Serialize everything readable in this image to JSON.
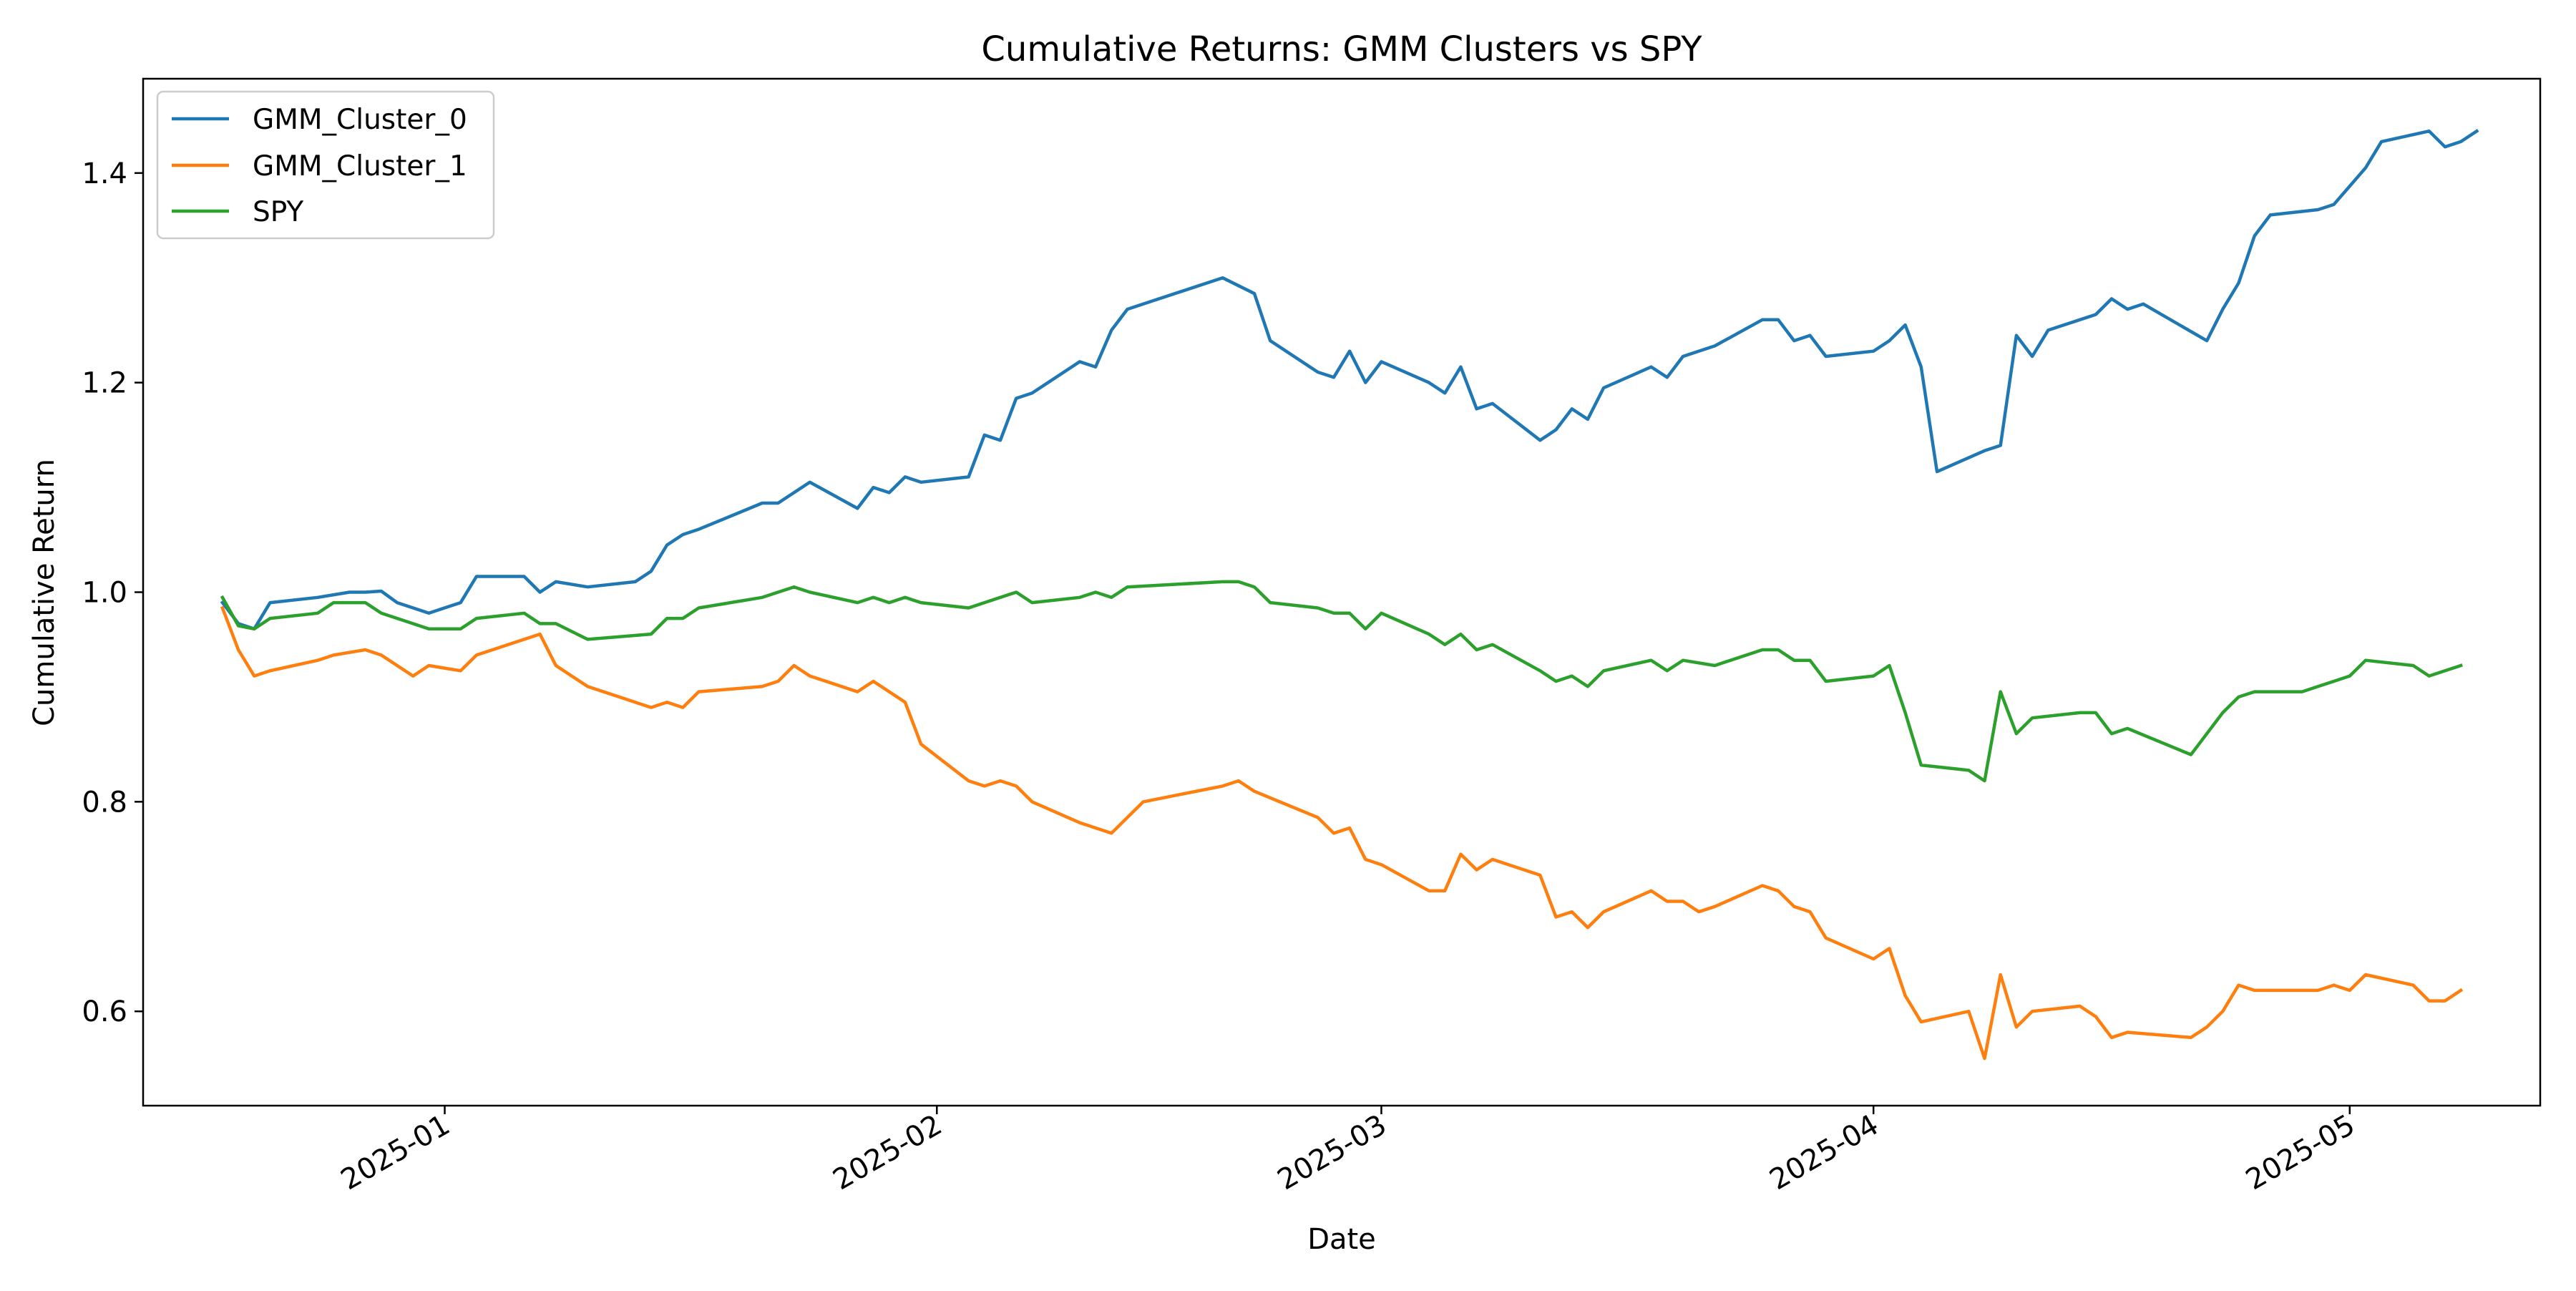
{
  "chart_data": {
    "type": "line",
    "title": "Cumulative Returns: GMM Clusters vs SPY",
    "xlabel": "Date",
    "ylabel": "Cumulative Return",
    "x_axis_type": "date",
    "xlim": [
      "2024-12-13",
      "2025-05-13"
    ],
    "ylim": [
      0.51,
      1.49
    ],
    "x_ticks": [
      "2025-01-01",
      "2025-02-01",
      "2025-03-01",
      "2025-04-01",
      "2025-05-01"
    ],
    "x_tick_labels": [
      "2025-01",
      "2025-02",
      "2025-03",
      "2025-04",
      "2025-05"
    ],
    "y_ticks": [
      0.6,
      0.8,
      1.0,
      1.2,
      1.4
    ],
    "y_tick_labels": [
      "0.6",
      "0.8",
      "1.0",
      "1.2",
      "1.4"
    ],
    "grid": false,
    "legend_position": "top-left",
    "series": [
      {
        "name": "GMM_Cluster_0",
        "color": "#1f77b4",
        "points": [
          [
            "2024-12-18",
            0.99
          ],
          [
            "2024-12-19",
            0.97
          ],
          [
            "2024-12-20",
            0.965
          ],
          [
            "2024-12-21",
            0.99
          ],
          [
            "2024-12-24",
            0.995
          ],
          [
            "2024-12-26",
            1.0
          ],
          [
            "2024-12-27",
            1.0
          ],
          [
            "2024-12-28",
            1.001
          ],
          [
            "2024-12-29",
            0.99
          ],
          [
            "2024-12-31",
            0.98
          ],
          [
            "2025-01-02",
            0.99
          ],
          [
            "2025-01-03",
            1.015
          ],
          [
            "2025-01-06",
            1.015
          ],
          [
            "2025-01-07",
            1.0
          ],
          [
            "2025-01-08",
            1.01
          ],
          [
            "2025-01-10",
            1.005
          ],
          [
            "2025-01-13",
            1.01
          ],
          [
            "2025-01-14",
            1.02
          ],
          [
            "2025-01-15",
            1.045
          ],
          [
            "2025-01-16",
            1.055
          ],
          [
            "2025-01-17",
            1.06
          ],
          [
            "2025-01-21",
            1.085
          ],
          [
            "2025-01-22",
            1.085
          ],
          [
            "2025-01-23",
            1.095
          ],
          [
            "2025-01-24",
            1.105
          ],
          [
            "2025-01-27",
            1.08
          ],
          [
            "2025-01-28",
            1.1
          ],
          [
            "2025-01-29",
            1.095
          ],
          [
            "2025-01-30",
            1.11
          ],
          [
            "2025-01-31",
            1.105
          ],
          [
            "2025-02-03",
            1.11
          ],
          [
            "2025-02-04",
            1.15
          ],
          [
            "2025-02-05",
            1.145
          ],
          [
            "2025-02-06",
            1.185
          ],
          [
            "2025-02-07",
            1.19
          ],
          [
            "2025-02-10",
            1.22
          ],
          [
            "2025-02-11",
            1.215
          ],
          [
            "2025-02-12",
            1.25
          ],
          [
            "2025-02-13",
            1.27
          ],
          [
            "2025-02-14",
            1.275
          ],
          [
            "2025-02-19",
            1.3
          ],
          [
            "2025-02-21",
            1.285
          ],
          [
            "2025-02-22",
            1.24
          ],
          [
            "2025-02-25",
            1.21
          ],
          [
            "2025-02-26",
            1.205
          ],
          [
            "2025-02-27",
            1.23
          ],
          [
            "2025-02-28",
            1.2
          ],
          [
            "2025-03-01",
            1.22
          ],
          [
            "2025-03-04",
            1.2
          ],
          [
            "2025-03-05",
            1.19
          ],
          [
            "2025-03-06",
            1.215
          ],
          [
            "2025-03-07",
            1.175
          ],
          [
            "2025-03-08",
            1.18
          ],
          [
            "2025-03-11",
            1.145
          ],
          [
            "2025-03-12",
            1.155
          ],
          [
            "2025-03-13",
            1.175
          ],
          [
            "2025-03-14",
            1.165
          ],
          [
            "2025-03-15",
            1.195
          ],
          [
            "2025-03-18",
            1.215
          ],
          [
            "2025-03-19",
            1.205
          ],
          [
            "2025-03-20",
            1.225
          ],
          [
            "2025-03-22",
            1.235
          ],
          [
            "2025-03-25",
            1.26
          ],
          [
            "2025-03-26",
            1.26
          ],
          [
            "2025-03-27",
            1.24
          ],
          [
            "2025-03-28",
            1.245
          ],
          [
            "2025-03-29",
            1.225
          ],
          [
            "2025-04-01",
            1.23
          ],
          [
            "2025-04-02",
            1.24
          ],
          [
            "2025-04-03",
            1.255
          ],
          [
            "2025-04-04",
            1.215
          ],
          [
            "2025-04-05",
            1.115
          ],
          [
            "2025-04-08",
            1.135
          ],
          [
            "2025-04-09",
            1.14
          ],
          [
            "2025-04-10",
            1.245
          ],
          [
            "2025-04-11",
            1.225
          ],
          [
            "2025-04-12",
            1.25
          ],
          [
            "2025-04-15",
            1.265
          ],
          [
            "2025-04-16",
            1.28
          ],
          [
            "2025-04-17",
            1.27
          ],
          [
            "2025-04-18",
            1.275
          ],
          [
            "2025-04-22",
            1.24
          ],
          [
            "2025-04-23",
            1.27
          ],
          [
            "2025-04-24",
            1.295
          ],
          [
            "2025-04-25",
            1.34
          ],
          [
            "2025-04-26",
            1.36
          ],
          [
            "2025-04-29",
            1.365
          ],
          [
            "2025-04-30",
            1.37
          ],
          [
            "2025-05-02",
            1.405
          ],
          [
            "2025-05-03",
            1.43
          ],
          [
            "2025-05-06",
            1.44
          ],
          [
            "2025-05-07",
            1.425
          ],
          [
            "2025-05-08",
            1.43
          ],
          [
            "2025-05-09",
            1.44
          ]
        ]
      },
      {
        "name": "GMM_Cluster_1",
        "color": "#ff7f0e",
        "points": [
          [
            "2024-12-18",
            0.985
          ],
          [
            "2024-12-19",
            0.945
          ],
          [
            "2024-12-20",
            0.92
          ],
          [
            "2024-12-21",
            0.925
          ],
          [
            "2024-12-24",
            0.935
          ],
          [
            "2024-12-25",
            0.94
          ],
          [
            "2024-12-27",
            0.945
          ],
          [
            "2024-12-28",
            0.94
          ],
          [
            "2024-12-30",
            0.92
          ],
          [
            "2024-12-31",
            0.93
          ],
          [
            "2025-01-02",
            0.925
          ],
          [
            "2025-01-03",
            0.94
          ],
          [
            "2025-01-06",
            0.955
          ],
          [
            "2025-01-07",
            0.96
          ],
          [
            "2025-01-08",
            0.93
          ],
          [
            "2025-01-10",
            0.91
          ],
          [
            "2025-01-13",
            0.895
          ],
          [
            "2025-01-14",
            0.89
          ],
          [
            "2025-01-15",
            0.895
          ],
          [
            "2025-01-16",
            0.89
          ],
          [
            "2025-01-17",
            0.905
          ],
          [
            "2025-01-21",
            0.91
          ],
          [
            "2025-01-22",
            0.915
          ],
          [
            "2025-01-23",
            0.93
          ],
          [
            "2025-01-24",
            0.92
          ],
          [
            "2025-01-27",
            0.905
          ],
          [
            "2025-01-28",
            0.915
          ],
          [
            "2025-01-30",
            0.895
          ],
          [
            "2025-01-31",
            0.855
          ],
          [
            "2025-02-03",
            0.82
          ],
          [
            "2025-02-04",
            0.815
          ],
          [
            "2025-02-05",
            0.82
          ],
          [
            "2025-02-06",
            0.815
          ],
          [
            "2025-02-07",
            0.8
          ],
          [
            "2025-02-10",
            0.78
          ],
          [
            "2025-02-12",
            0.77
          ],
          [
            "2025-02-13",
            0.785
          ],
          [
            "2025-02-14",
            0.8
          ],
          [
            "2025-02-19",
            0.815
          ],
          [
            "2025-02-20",
            0.82
          ],
          [
            "2025-02-21",
            0.81
          ],
          [
            "2025-02-25",
            0.785
          ],
          [
            "2025-02-26",
            0.77
          ],
          [
            "2025-02-27",
            0.775
          ],
          [
            "2025-02-28",
            0.745
          ],
          [
            "2025-03-01",
            0.74
          ],
          [
            "2025-03-04",
            0.715
          ],
          [
            "2025-03-05",
            0.715
          ],
          [
            "2025-03-06",
            0.75
          ],
          [
            "2025-03-07",
            0.735
          ],
          [
            "2025-03-08",
            0.745
          ],
          [
            "2025-03-11",
            0.73
          ],
          [
            "2025-03-12",
            0.69
          ],
          [
            "2025-03-13",
            0.695
          ],
          [
            "2025-03-14",
            0.68
          ],
          [
            "2025-03-15",
            0.695
          ],
          [
            "2025-03-18",
            0.715
          ],
          [
            "2025-03-19",
            0.705
          ],
          [
            "2025-03-20",
            0.705
          ],
          [
            "2025-03-21",
            0.695
          ],
          [
            "2025-03-22",
            0.7
          ],
          [
            "2025-03-25",
            0.72
          ],
          [
            "2025-03-26",
            0.715
          ],
          [
            "2025-03-27",
            0.7
          ],
          [
            "2025-03-28",
            0.695
          ],
          [
            "2025-03-29",
            0.67
          ],
          [
            "2025-04-01",
            0.65
          ],
          [
            "2025-04-02",
            0.66
          ],
          [
            "2025-04-03",
            0.615
          ],
          [
            "2025-04-04",
            0.59
          ],
          [
            "2025-04-07",
            0.6
          ],
          [
            "2025-04-08",
            0.555
          ],
          [
            "2025-04-09",
            0.635
          ],
          [
            "2025-04-10",
            0.585
          ],
          [
            "2025-04-11",
            0.6
          ],
          [
            "2025-04-14",
            0.605
          ],
          [
            "2025-04-15",
            0.595
          ],
          [
            "2025-04-16",
            0.575
          ],
          [
            "2025-04-17",
            0.58
          ],
          [
            "2025-04-21",
            0.575
          ],
          [
            "2025-04-22",
            0.585
          ],
          [
            "2025-04-23",
            0.6
          ],
          [
            "2025-04-24",
            0.625
          ],
          [
            "2025-04-25",
            0.62
          ],
          [
            "2025-04-29",
            0.62
          ],
          [
            "2025-04-30",
            0.625
          ],
          [
            "2025-05-01",
            0.62
          ],
          [
            "2025-05-02",
            0.635
          ],
          [
            "2025-05-05",
            0.625
          ],
          [
            "2025-05-06",
            0.61
          ],
          [
            "2025-05-07",
            0.61
          ],
          [
            "2025-05-08",
            0.62
          ]
        ]
      },
      {
        "name": "SPY",
        "color": "#2ca02c",
        "points": [
          [
            "2024-12-18",
            0.995
          ],
          [
            "2024-12-19",
            0.968
          ],
          [
            "2024-12-20",
            0.965
          ],
          [
            "2024-12-21",
            0.975
          ],
          [
            "2024-12-24",
            0.98
          ],
          [
            "2024-12-25",
            0.99
          ],
          [
            "2024-12-27",
            0.99
          ],
          [
            "2024-12-28",
            0.98
          ],
          [
            "2024-12-31",
            0.965
          ],
          [
            "2025-01-02",
            0.965
          ],
          [
            "2025-01-03",
            0.975
          ],
          [
            "2025-01-06",
            0.98
          ],
          [
            "2025-01-07",
            0.97
          ],
          [
            "2025-01-08",
            0.97
          ],
          [
            "2025-01-10",
            0.955
          ],
          [
            "2025-01-14",
            0.96
          ],
          [
            "2025-01-15",
            0.975
          ],
          [
            "2025-01-16",
            0.975
          ],
          [
            "2025-01-17",
            0.985
          ],
          [
            "2025-01-21",
            0.995
          ],
          [
            "2025-01-23",
            1.005
          ],
          [
            "2025-01-24",
            1.0
          ],
          [
            "2025-01-27",
            0.99
          ],
          [
            "2025-01-28",
            0.995
          ],
          [
            "2025-01-29",
            0.99
          ],
          [
            "2025-01-30",
            0.995
          ],
          [
            "2025-01-31",
            0.99
          ],
          [
            "2025-02-03",
            0.985
          ],
          [
            "2025-02-04",
            0.99
          ],
          [
            "2025-02-06",
            1.0
          ],
          [
            "2025-02-07",
            0.99
          ],
          [
            "2025-02-10",
            0.995
          ],
          [
            "2025-02-11",
            1.0
          ],
          [
            "2025-02-12",
            0.995
          ],
          [
            "2025-02-13",
            1.005
          ],
          [
            "2025-02-19",
            1.01
          ],
          [
            "2025-02-20",
            1.01
          ],
          [
            "2025-02-21",
            1.005
          ],
          [
            "2025-02-22",
            0.99
          ],
          [
            "2025-02-25",
            0.985
          ],
          [
            "2025-02-26",
            0.98
          ],
          [
            "2025-02-27",
            0.98
          ],
          [
            "2025-02-28",
            0.965
          ],
          [
            "2025-03-01",
            0.98
          ],
          [
            "2025-03-04",
            0.96
          ],
          [
            "2025-03-05",
            0.95
          ],
          [
            "2025-03-06",
            0.96
          ],
          [
            "2025-03-07",
            0.945
          ],
          [
            "2025-03-08",
            0.95
          ],
          [
            "2025-03-11",
            0.925
          ],
          [
            "2025-03-12",
            0.915
          ],
          [
            "2025-03-13",
            0.92
          ],
          [
            "2025-03-14",
            0.91
          ],
          [
            "2025-03-15",
            0.925
          ],
          [
            "2025-03-18",
            0.935
          ],
          [
            "2025-03-19",
            0.925
          ],
          [
            "2025-03-20",
            0.935
          ],
          [
            "2025-03-22",
            0.93
          ],
          [
            "2025-03-25",
            0.945
          ],
          [
            "2025-03-26",
            0.945
          ],
          [
            "2025-03-27",
            0.935
          ],
          [
            "2025-03-28",
            0.935
          ],
          [
            "2025-03-29",
            0.915
          ],
          [
            "2025-04-01",
            0.92
          ],
          [
            "2025-04-02",
            0.93
          ],
          [
            "2025-04-03",
            0.885
          ],
          [
            "2025-04-04",
            0.835
          ],
          [
            "2025-04-07",
            0.83
          ],
          [
            "2025-04-08",
            0.82
          ],
          [
            "2025-04-09",
            0.905
          ],
          [
            "2025-04-10",
            0.865
          ],
          [
            "2025-04-11",
            0.88
          ],
          [
            "2025-04-14",
            0.885
          ],
          [
            "2025-04-15",
            0.885
          ],
          [
            "2025-04-16",
            0.865
          ],
          [
            "2025-04-17",
            0.87
          ],
          [
            "2025-04-21",
            0.845
          ],
          [
            "2025-04-22",
            0.865
          ],
          [
            "2025-04-23",
            0.885
          ],
          [
            "2025-04-24",
            0.9
          ],
          [
            "2025-04-25",
            0.905
          ],
          [
            "2025-04-28",
            0.905
          ],
          [
            "2025-04-29",
            0.91
          ],
          [
            "2025-04-30",
            0.915
          ],
          [
            "2025-05-01",
            0.92
          ],
          [
            "2025-05-02",
            0.935
          ],
          [
            "2025-05-05",
            0.93
          ],
          [
            "2025-05-06",
            0.92
          ],
          [
            "2025-05-07",
            0.925
          ],
          [
            "2025-05-08",
            0.93
          ]
        ]
      }
    ]
  }
}
